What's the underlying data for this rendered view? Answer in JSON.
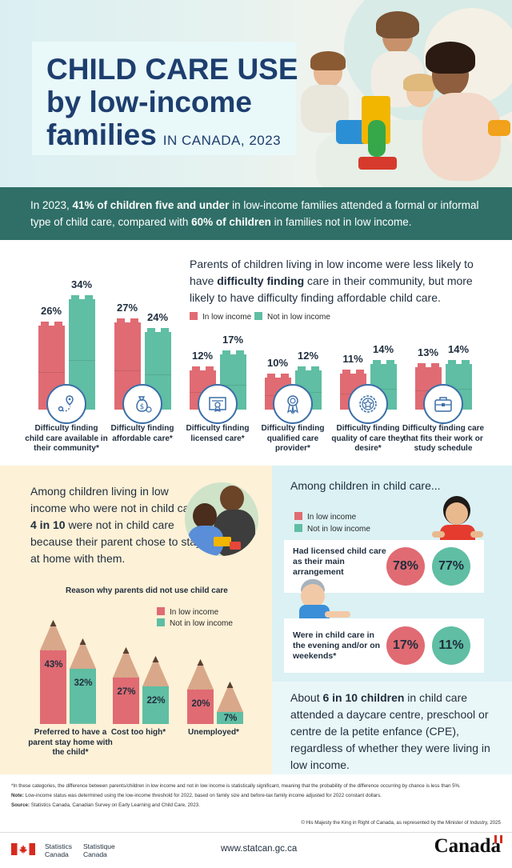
{
  "header": {
    "title_line1": "CHILD CARE USE",
    "title_line2": "by low-income",
    "title_line3": "families",
    "title_sub": "IN CANADA, 2023"
  },
  "intro": {
    "part1": "In 2023, ",
    "bold1": "41% of children five and under",
    "part2": " in low-income families attended a formal or informal type of child care, compared with ",
    "bold2": "60% of children",
    "part3": " in families not in low income."
  },
  "difficulty": {
    "text1": "Parents of children living in low income were less likely to have ",
    "bold": "difficulty finding",
    "text2": " care in their community, but more likely to have difficulty finding affordable child care.",
    "legend_low": "In low income",
    "legend_not": "Not in low income",
    "colors": {
      "low": "#e06b73",
      "not": "#5fbea3"
    }
  },
  "chart_data": {
    "type": "bar",
    "categories": [
      "Difficulty finding child care available in their community*",
      "Difficulty finding affordable care*",
      "Difficulty finding licensed care*",
      "Difficulty finding qualified care provider*",
      "Difficulty finding quality of care they desire*",
      "Difficulty finding care that fits their work or study schedule"
    ],
    "series": [
      {
        "name": "In low income",
        "values": [
          26,
          27,
          12,
          10,
          11,
          13
        ]
      },
      {
        "name": "Not in low income",
        "values": [
          34,
          24,
          17,
          12,
          14,
          14
        ]
      }
    ],
    "value_labels_low": [
      "26%",
      "27%",
      "12%",
      "10%",
      "11%",
      "13%"
    ],
    "value_labels_not": [
      "34%",
      "24%",
      "17%",
      "12%",
      "14%",
      "14%"
    ],
    "icons": [
      "location-icon",
      "money-bag-icon",
      "certificate-icon",
      "award-ribbon-icon",
      "star-badge-icon",
      "briefcase-icon"
    ]
  },
  "reasons": {
    "intro_1": "Among children living in low income who were not in child care, ",
    "intro_bold": "4 in 10",
    "intro_2": " were not in child care because their parent chose to stay at home with them.",
    "title": "Reason why parents did not use child care",
    "legend_low": "In low income",
    "legend_not": "Not in low income",
    "chart_data": {
      "type": "bar",
      "categories": [
        "Preferred to have a parent stay home with the child*",
        "Cost too high*",
        "Unemployed*"
      ],
      "series": [
        {
          "name": "In low income",
          "values": [
            43,
            27,
            20
          ]
        },
        {
          "name": "Not in low income",
          "values": [
            32,
            22,
            7
          ]
        }
      ],
      "labels_low": [
        "43%",
        "27%",
        "20%"
      ],
      "labels_not": [
        "32%",
        "22%",
        "7%"
      ]
    }
  },
  "in_care": {
    "heading": "Among children in child care...",
    "legend_low": "In low income",
    "legend_not": "Not in low income",
    "card1_label": "Had licensed child care as their main arrangement",
    "card1_low": "78%",
    "card1_not": "77%",
    "card2_label": "Were in child care in the evening and/or on weekends*",
    "card2_low": "17%",
    "card2_not": "11%",
    "about_1": "About ",
    "about_bold": "6 in 10 children",
    "about_2": " in child care attended a daycare centre, preschool or centre de la petite enfance (CPE), regardless of whether they were living in low income."
  },
  "notes": {
    "note1": "*In these categories, the difference between parents/children in low income and not in low income is statistically significant, meaning that the probability of the difference occurring by chance is less than 5%.",
    "note2_label": "Note:",
    "note2": " Low-income status was determined using the low-income threshold for 2022, based on family size and before-tax family income adjusted for 2022 constant dollars.",
    "source_label": "Source:",
    "source": " Statistics Canada, Canadian Survey on Early Learning and Child Care, 2023.",
    "copyright": "© His Majesty the King in Right of Canada, as represented by the Minister of Industry, 2025"
  },
  "footer": {
    "statcan_en_1": "Statistics",
    "statcan_en_2": "Canada",
    "statcan_fr_1": "Statistique",
    "statcan_fr_2": "Canada",
    "url": "www.statcan.gc.ca",
    "canada": "Canada"
  }
}
